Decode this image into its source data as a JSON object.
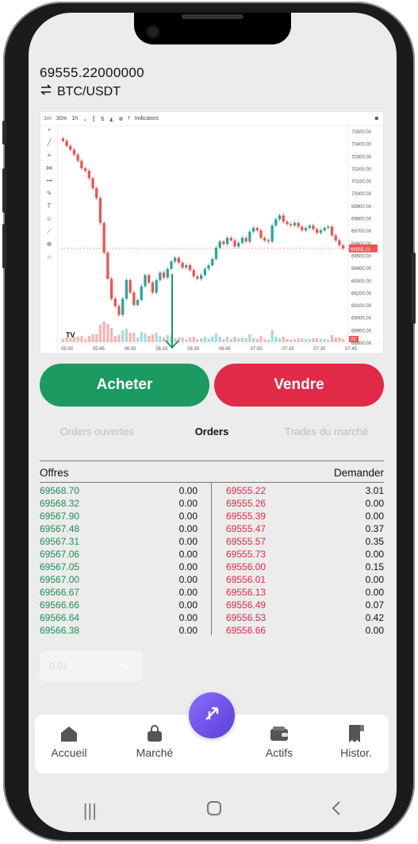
{
  "ticker": {
    "price": "69555.22000000",
    "pair": "BTC/USDT"
  },
  "chart_toolbar": {
    "intervals": [
      "1m",
      "30m",
      "1h"
    ],
    "indicators_label": "Indicators"
  },
  "chart_data": {
    "type": "candlestick",
    "x_ticks": [
      "05:30",
      "05:45",
      "06:00",
      "06:15",
      "06:30",
      "06:45",
      "07:00",
      "07:15",
      "07:30",
      "07:45"
    ],
    "y_ticks": [
      "70500.00",
      "70400.00",
      "70300.00",
      "70200.00",
      "70100.00",
      "70000.00",
      "69900.00",
      "69800.00",
      "69700.00",
      "69600.00",
      "69500.00",
      "69400.00",
      "69300.00",
      "69200.00",
      "69100.00",
      "69000.00",
      "68900.00",
      "68800.00"
    ],
    "ylim": [
      68800,
      70500
    ],
    "last_price_label": "69555.21",
    "last_price_sublabel": "22",
    "series_close": [
      70420,
      70380,
      70350,
      70310,
      70260,
      70200,
      70180,
      70120,
      70040,
      69960,
      69760,
      69520,
      69310,
      69150,
      69090,
      69020,
      69150,
      69300,
      69200,
      69100,
      69140,
      69250,
      69340,
      69280,
      69200,
      69300,
      69360,
      69320,
      69390,
      69450,
      69480,
      69440,
      69400,
      69420,
      69380,
      69330,
      69310,
      69340,
      69390,
      69420,
      69470,
      69560,
      69610,
      69590,
      69640,
      69620,
      69570,
      69600,
      69640,
      69610,
      69690,
      69720,
      69700,
      69640,
      69620,
      69610,
      69740,
      69790,
      69820,
      69770,
      69750,
      69740,
      69760,
      69730,
      69700,
      69720,
      69740,
      69710,
      69680,
      69700,
      69720,
      69730,
      69660,
      69620,
      69580,
      69555
    ]
  },
  "actions": {
    "buy": "Acheter",
    "sell": "Vendre"
  },
  "tabs": [
    "Orders ouvertes",
    "Orders",
    "Trades du marché"
  ],
  "order_book": {
    "bids_title": "Offres",
    "asks_title": "Demander",
    "bids": [
      [
        "69568.70",
        "0.00"
      ],
      [
        "69568.32",
        "0.00"
      ],
      [
        "69567.90",
        "0.00"
      ],
      [
        "69567.48",
        "0.00"
      ],
      [
        "69567.31",
        "0.00"
      ],
      [
        "69567.06",
        "0.00"
      ],
      [
        "69567.05",
        "0.00"
      ],
      [
        "69567.00",
        "0.00"
      ],
      [
        "69566.67",
        "0.00"
      ],
      [
        "69566.66",
        "0.00"
      ],
      [
        "69566.64",
        "0.00"
      ],
      [
        "69566.38",
        "0.00"
      ]
    ],
    "asks": [
      [
        "69555.22",
        "3.01"
      ],
      [
        "69555.26",
        "0.00"
      ],
      [
        "69555.39",
        "0.00"
      ],
      [
        "69555.47",
        "0.37"
      ],
      [
        "69555.57",
        "0.35"
      ],
      [
        "69555.73",
        "0.00"
      ],
      [
        "69556.00",
        "0.15"
      ],
      [
        "69556.01",
        "0.00"
      ],
      [
        "69556.13",
        "0.00"
      ],
      [
        "69556.49",
        "0.07"
      ],
      [
        "69556.53",
        "0.42"
      ],
      [
        "69556.66",
        "0.00"
      ]
    ]
  },
  "precision_select": {
    "value": "0.01"
  },
  "bottom_nav": {
    "home": "Accueil",
    "market": "Marché",
    "assets": "Actifs",
    "history": "Histor."
  },
  "colors": {
    "buy": "#1b9a62",
    "sell": "#e02a48",
    "fab": "#6a4ee8"
  }
}
